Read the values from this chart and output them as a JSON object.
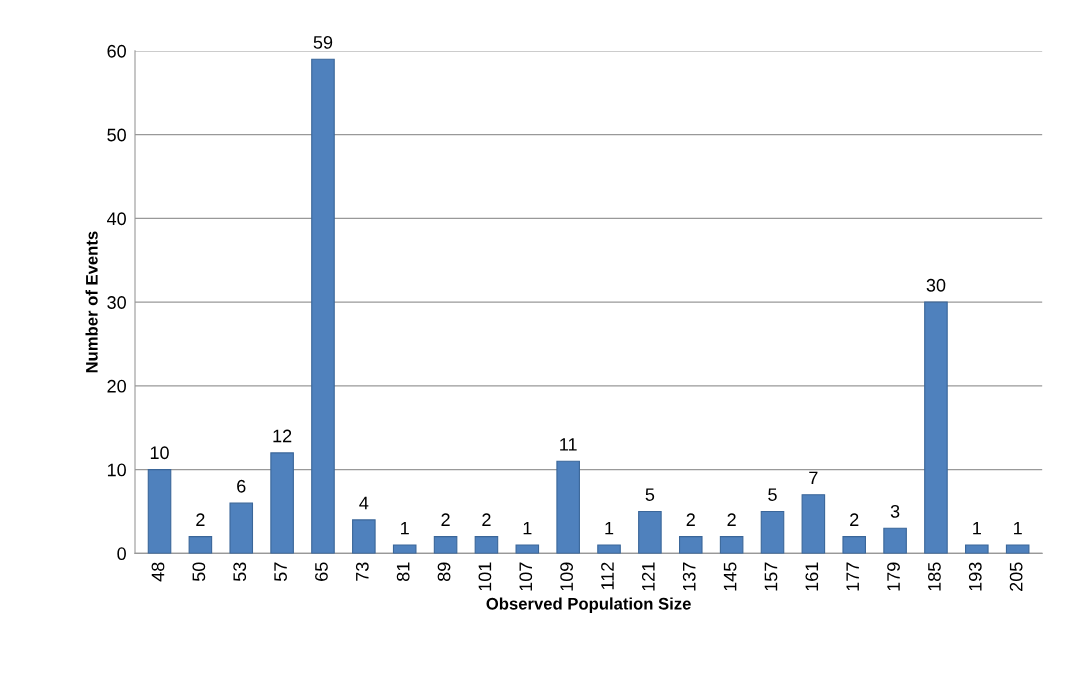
{
  "chart_data": {
    "type": "bar",
    "xlabel": "Observed Population Size",
    "ylabel": "Number of Events",
    "categories": [
      "48",
      "50",
      "53",
      "57",
      "65",
      "73",
      "81",
      "89",
      "101",
      "107",
      "109",
      "112",
      "121",
      "137",
      "145",
      "157",
      "161",
      "177",
      "179",
      "185",
      "193",
      "205"
    ],
    "values": [
      10,
      2,
      6,
      12,
      59,
      4,
      1,
      2,
      2,
      1,
      11,
      1,
      5,
      2,
      2,
      5,
      7,
      2,
      3,
      30,
      1,
      1
    ],
    "color": "#4f81bd",
    "ylim": [
      0,
      60
    ],
    "yticks": [
      0,
      10,
      20,
      30,
      40,
      50,
      60
    ],
    "grid": "y",
    "data_labels": true,
    "legend": false
  }
}
